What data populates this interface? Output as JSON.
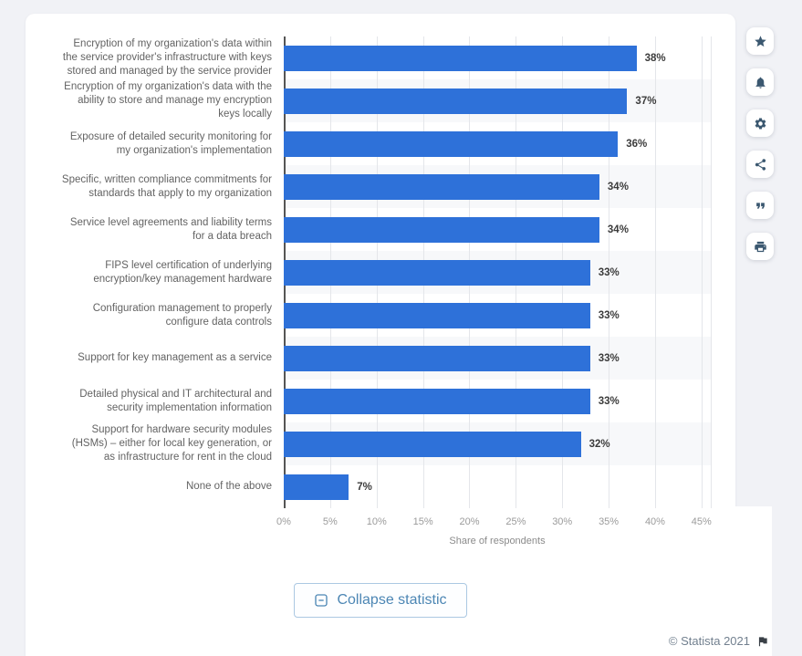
{
  "chart_data": {
    "type": "bar",
    "orientation": "horizontal",
    "categories": [
      "Encryption of my organization's data within the service provider's infrastructure with keys stored and managed by the service provider",
      "Encryption of my organization's data with the ability to store and manage my encryption keys locally",
      "Exposure of detailed security monitoring for my organization's implementation",
      "Specific, written compliance commitments for standards that apply to my organization",
      "Service level agreements and liability terms for a data breach",
      "FIPS level certification of underlying encryption/key management hardware",
      "Configuration management to properly configure data controls",
      "Support for key management as a service",
      "Detailed physical and IT architectural and security implementation information",
      "Support for hardware security modules (HSMs) – either for local key generation, or as infrastructure for rent in the cloud",
      "None of the above"
    ],
    "values": [
      38,
      37,
      36,
      34,
      34,
      33,
      33,
      33,
      33,
      32,
      7
    ],
    "value_labels": [
      "38%",
      "37%",
      "36%",
      "34%",
      "34%",
      "33%",
      "33%",
      "33%",
      "33%",
      "32%",
      "7%"
    ],
    "xlabel": "Share of respondents",
    "x_tick_values": [
      0,
      5,
      10,
      15,
      20,
      25,
      30,
      35,
      40,
      45
    ],
    "x_tick_labels": [
      "0%",
      "5%",
      "10%",
      "15%",
      "20%",
      "25%",
      "30%",
      "35%",
      "40%",
      "45%"
    ],
    "xlim": [
      0,
      46
    ],
    "grid": true,
    "legend": null,
    "zebra_rows": true
  },
  "toolbar": {
    "buttons": [
      {
        "name": "favorite",
        "icon": "star-icon"
      },
      {
        "name": "notifications",
        "icon": "bell-icon"
      },
      {
        "name": "settings",
        "icon": "gear-icon"
      },
      {
        "name": "share",
        "icon": "share-icon"
      },
      {
        "name": "cite",
        "icon": "quote-icon"
      },
      {
        "name": "print",
        "icon": "printer-icon"
      }
    ]
  },
  "footer": {
    "collapse_button": "Collapse statistic",
    "copyright": "© Statista 2021"
  },
  "colors": {
    "bar": "#2e71d9",
    "accent_blue": "#4c86b4",
    "icon": "#3b5870",
    "page_bg": "#f1f2f6",
    "card_bg": "#ffffff",
    "zebra": "#f7f8fa",
    "gridline": "#e4e6ea"
  }
}
